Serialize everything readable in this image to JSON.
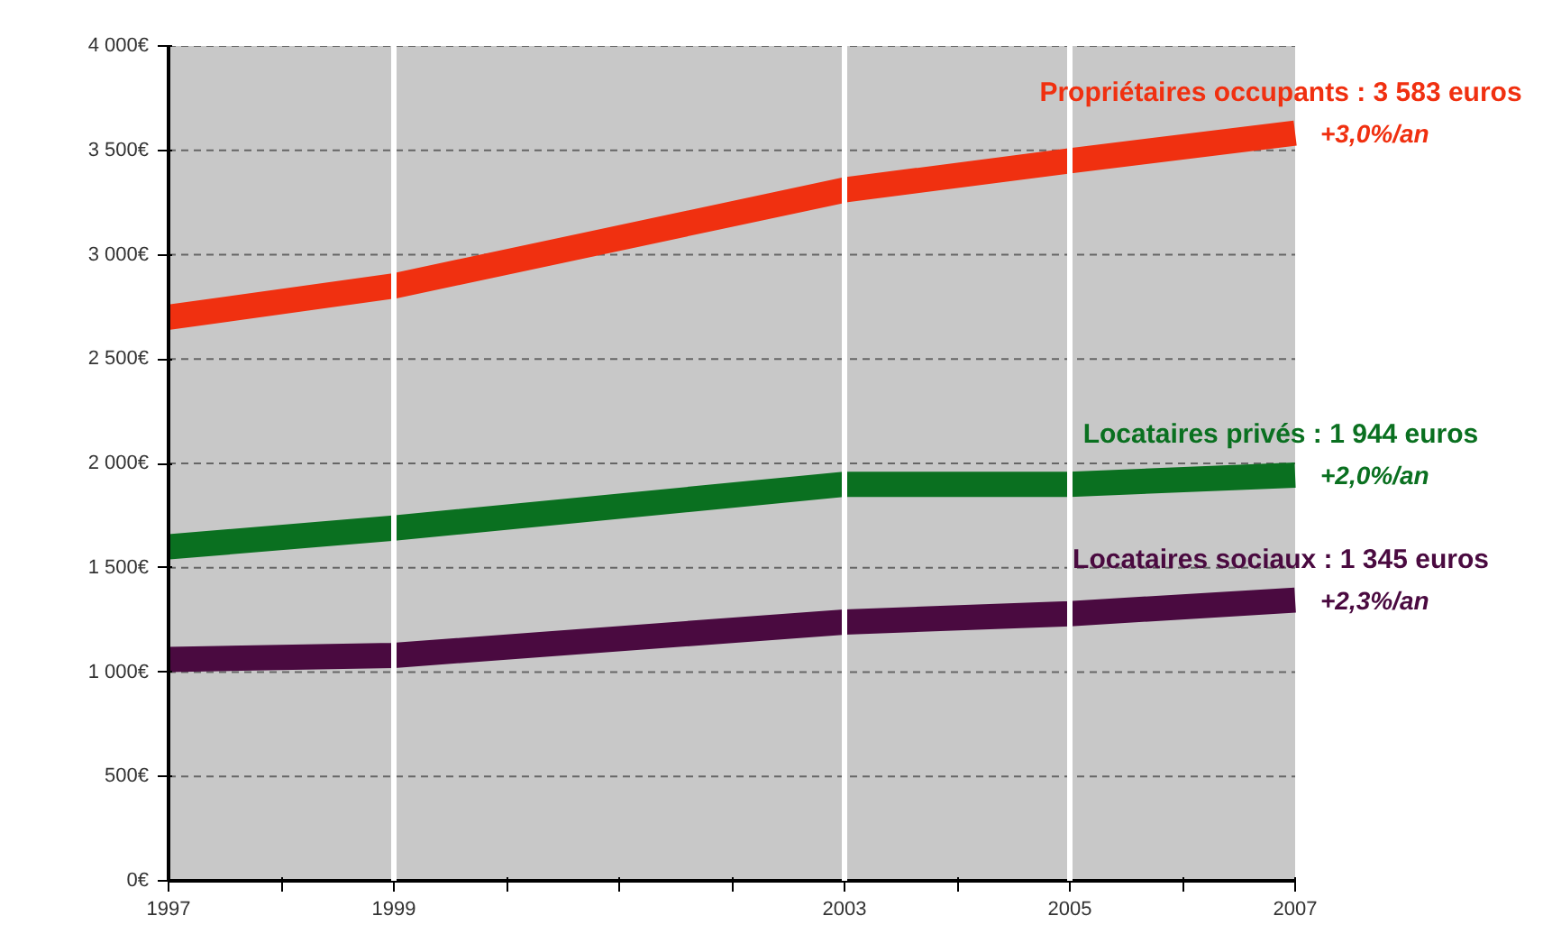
{
  "chart_data": {
    "type": "line",
    "x": [
      1997,
      1999,
      2003,
      2005,
      2007
    ],
    "series": [
      {
        "color": "#f03010",
        "values": [
          2700,
          2850,
          3310,
          3450,
          3583
        ]
      },
      {
        "color": "#0a7020",
        "values": [
          1600,
          1690,
          1900,
          1900,
          1944
        ]
      },
      {
        "color": "#4a0a40",
        "values": [
          1060,
          1080,
          1240,
          1280,
          1345
        ]
      }
    ],
    "xlim": [
      1997,
      2007
    ],
    "xticks": [
      1997,
      {
        "value": 1998,
        "label": null
      },
      1999,
      {
        "value": 2000,
        "label": null
      },
      {
        "value": 2001,
        "label": null
      },
      {
        "value": 2002,
        "label": null
      },
      2003,
      {
        "value": 2004,
        "label": null
      },
      2005,
      {
        "value": 2006,
        "label": null
      },
      2007
    ],
    "ylim": [
      0,
      4000
    ],
    "yticks": [
      {
        "value": 0,
        "label": "0€"
      },
      {
        "value": 500,
        "label": "500€"
      },
      {
        "value": 1000,
        "label": "1 000€"
      },
      {
        "value": 1500,
        "label": "1 500€"
      },
      {
        "value": 2000,
        "label": "2 000€"
      },
      {
        "value": 2500,
        "label": "2 500€"
      },
      {
        "value": 3000,
        "label": "3 000€"
      },
      {
        "value": 3500,
        "label": "3 500€"
      },
      {
        "value": 4000,
        "label": "4 000€"
      }
    ],
    "grid": "y",
    "ref_lines": [
      {
        "axis": "x",
        "value": 1999,
        "color": "#ffffff"
      },
      {
        "axis": "x",
        "value": 2003,
        "color": "#ffffff"
      },
      {
        "axis": "x",
        "value": 2005,
        "color": "#ffffff"
      }
    ],
    "annotations": [
      "Propriétaires occupants : 3 583 euros",
      "+3,0%/an",
      "Locataires privés : 1 944 euros",
      "+2,0%/an",
      "Locataires sociaux : 1 345 euros",
      "+2,3%/an"
    ],
    "marker": "none",
    "line_style": "solid"
  }
}
